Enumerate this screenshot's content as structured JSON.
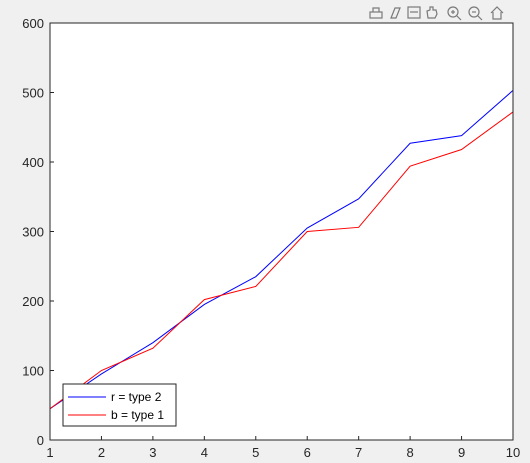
{
  "toolbar": {
    "icons": [
      "export-icon",
      "brush-icon",
      "data-tip-icon",
      "pan-icon",
      "zoom-in-icon",
      "zoom-out-icon",
      "home-icon"
    ]
  },
  "chart_data": {
    "type": "line",
    "title": "",
    "xlabel": "",
    "ylabel": "",
    "xlim": [
      1,
      10
    ],
    "ylim": [
      0,
      600
    ],
    "x": [
      1,
      2,
      3,
      4,
      5,
      6,
      7,
      8,
      9,
      10
    ],
    "x_ticks": [
      "1",
      "2",
      "3",
      "4",
      "5",
      "6",
      "7",
      "8",
      "9",
      "10"
    ],
    "y_ticks": [
      "0",
      "100",
      "200",
      "300",
      "400",
      "500",
      "600"
    ],
    "grid": false,
    "legend": {
      "placement": "bottom-left"
    },
    "series": [
      {
        "name": "r = type 2",
        "color": "#0000ff",
        "y": [
          45,
          95,
          140,
          195,
          235,
          305,
          347,
          427,
          438,
          503
        ]
      },
      {
        "name": "b = type 1",
        "color": "#ff0000",
        "y": [
          45,
          100,
          132,
          202,
          221,
          300,
          306,
          394,
          418,
          472
        ]
      }
    ]
  }
}
